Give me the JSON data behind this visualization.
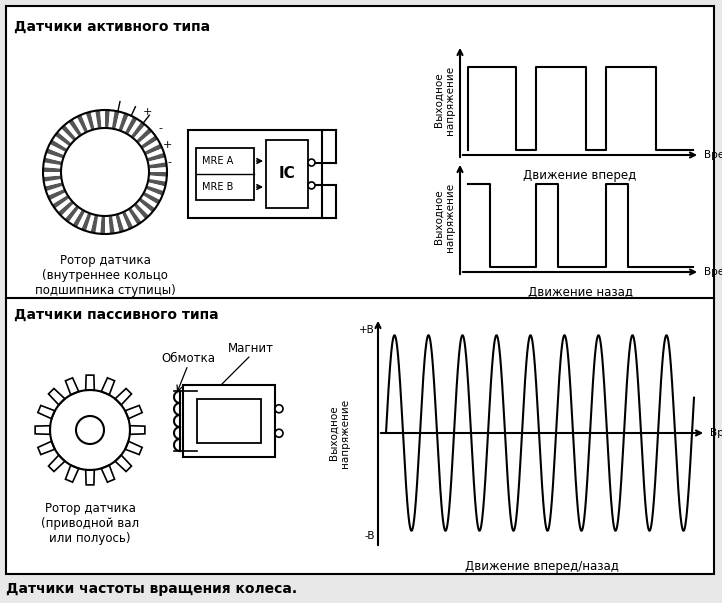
{
  "title_active": "Датчики активного типа",
  "title_passive": "Датчики пассивного типа",
  "caption": "Датчики частоты вращения колеса.",
  "rotor_active_label": "Ротор датчика\n(внутреннее кольцо\nподшипника ступицы)",
  "rotor_passive_label": "Ротор датчика\n(приводной вал\nили полуось)",
  "ylabel_active1": "Выходное\nнапряжение",
  "xlabel_active1": "Движение вперед",
  "time_label": "Время",
  "ylabel_active2": "Выходное\nнапряжение",
  "xlabel_active2": "Движение назад",
  "ylabel_passive": "Выходное\nнапряжение",
  "xlabel_passive": "Движение вперед/назад",
  "coil_label": "Обмотка",
  "magnet_label": "Магнит",
  "plus_label": "+B",
  "minus_label": "-B",
  "bg_color": "#e8e8e8",
  "line_color": "#000000",
  "font_size_title": 10,
  "font_size_label": 8.5,
  "font_size_small": 7.5,
  "font_size_caption": 10
}
